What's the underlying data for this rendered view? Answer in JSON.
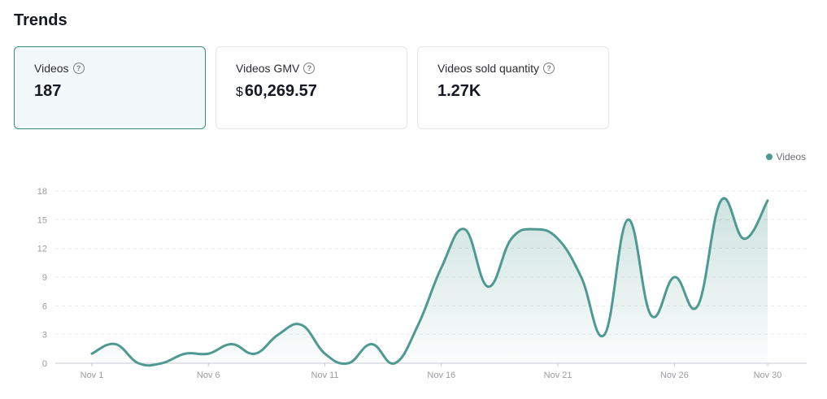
{
  "page": {
    "title": "Trends"
  },
  "cards": [
    {
      "label": "Videos",
      "value": "187",
      "currency": ""
    },
    {
      "label": "Videos GMV",
      "value": "60,269.57",
      "currency": "$"
    },
    {
      "label": "Videos sold quantity",
      "value": "1.27K",
      "currency": ""
    }
  ],
  "icons": {
    "help": "?"
  },
  "colors": {
    "accent": "#4e9a92",
    "active_card_border": "#3d8a85"
  },
  "chart_data": {
    "type": "area",
    "title": "",
    "xlabel": "",
    "ylabel": "",
    "legend": {
      "position": "top-right",
      "entries": [
        "Videos"
      ]
    },
    "x": [
      "Nov 1",
      "Nov 2",
      "Nov 3",
      "Nov 4",
      "Nov 5",
      "Nov 6",
      "Nov 7",
      "Nov 8",
      "Nov 9",
      "Nov 10",
      "Nov 11",
      "Nov 12",
      "Nov 13",
      "Nov 14",
      "Nov 15",
      "Nov 16",
      "Nov 17",
      "Nov 18",
      "Nov 19",
      "Nov 20",
      "Nov 21",
      "Nov 22",
      "Nov 23",
      "Nov 24",
      "Nov 25",
      "Nov 26",
      "Nov 27",
      "Nov 28",
      "Nov 29",
      "Nov 30"
    ],
    "x_tick_labels": [
      "Nov 1",
      "Nov 6",
      "Nov 11",
      "Nov 16",
      "Nov 21",
      "Nov 26",
      "Nov 30"
    ],
    "y_ticks": [
      0,
      3,
      6,
      9,
      12,
      15,
      18
    ],
    "ylim": [
      0,
      18
    ],
    "grid": true,
    "series": [
      {
        "name": "Videos",
        "values": [
          1,
          2,
          0,
          0,
          1,
          1,
          2,
          1,
          3,
          4,
          1,
          0,
          2,
          0,
          4,
          10,
          14,
          8,
          13,
          14,
          13,
          9,
          3,
          15,
          5,
          9,
          6,
          17,
          13,
          17
        ]
      }
    ]
  }
}
